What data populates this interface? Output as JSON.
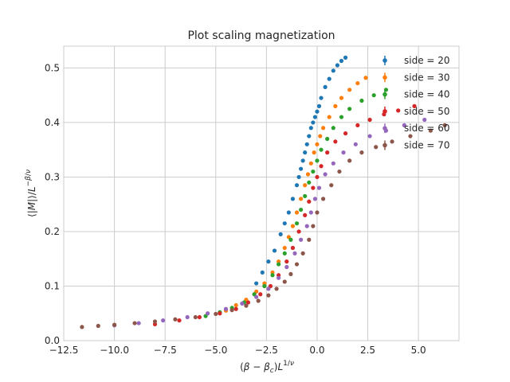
{
  "chart_data": {
    "type": "scatter",
    "title": "Plot scaling magnetization",
    "xlabel": "(β − β_c)L^{1/ν}",
    "ylabel": "⟨|M|⟩/L^{−β/ν}",
    "xlim": [
      -12.5,
      7.0
    ],
    "ylim": [
      0.0,
      0.54
    ],
    "x_ticks": [
      -12.5,
      -10.0,
      -7.5,
      -5.0,
      -2.5,
      0.0,
      2.5,
      5.0
    ],
    "y_ticks": [
      0.0,
      0.1,
      0.2,
      0.3,
      0.4,
      0.5
    ],
    "grid": true,
    "legend_position": "top-right",
    "colors": [
      "#1f77b4",
      "#ff7f0e",
      "#2ca02c",
      "#d62728",
      "#9467bd",
      "#8c564b"
    ],
    "series": [
      {
        "name": "side = 20",
        "x": [
          -3.0,
          -2.7,
          -2.4,
          -2.1,
          -1.8,
          -1.6,
          -1.4,
          -1.2,
          -1.0,
          -0.9,
          -0.8,
          -0.7,
          -0.6,
          -0.5,
          -0.4,
          -0.3,
          -0.2,
          -0.1,
          0.0,
          0.1,
          0.2,
          0.4,
          0.6,
          0.8,
          1.0,
          1.2,
          1.4
        ],
        "y": [
          0.105,
          0.125,
          0.145,
          0.165,
          0.195,
          0.215,
          0.235,
          0.26,
          0.285,
          0.3,
          0.315,
          0.33,
          0.345,
          0.36,
          0.375,
          0.39,
          0.4,
          0.41,
          0.42,
          0.43,
          0.445,
          0.465,
          0.48,
          0.495,
          0.505,
          0.513,
          0.519
        ]
      },
      {
        "name": "side = 30",
        "x": [
          -4.5,
          -4.0,
          -3.5,
          -3.0,
          -2.6,
          -2.2,
          -1.9,
          -1.6,
          -1.4,
          -1.2,
          -1.0,
          -0.8,
          -0.6,
          -0.45,
          -0.3,
          -0.15,
          0.0,
          0.15,
          0.3,
          0.6,
          0.9,
          1.2,
          1.6,
          2.0,
          2.4
        ],
        "y": [
          0.055,
          0.065,
          0.075,
          0.09,
          0.105,
          0.125,
          0.145,
          0.17,
          0.19,
          0.21,
          0.235,
          0.26,
          0.285,
          0.305,
          0.325,
          0.345,
          0.36,
          0.375,
          0.39,
          0.41,
          0.43,
          0.445,
          0.46,
          0.472,
          0.482
        ]
      },
      {
        "name": "side = 40",
        "x": [
          -5.5,
          -4.8,
          -4.2,
          -3.6,
          -3.1,
          -2.6,
          -2.2,
          -1.9,
          -1.6,
          -1.3,
          -1.0,
          -0.8,
          -0.6,
          -0.4,
          -0.2,
          0.0,
          0.2,
          0.5,
          0.8,
          1.2,
          1.6,
          2.2,
          2.8,
          3.4
        ],
        "y": [
          0.045,
          0.052,
          0.06,
          0.07,
          0.085,
          0.1,
          0.12,
          0.14,
          0.16,
          0.185,
          0.215,
          0.24,
          0.265,
          0.29,
          0.31,
          0.33,
          0.35,
          0.37,
          0.39,
          0.41,
          0.425,
          0.44,
          0.45,
          0.46
        ]
      },
      {
        "name": "side = 50",
        "x": [
          -8.0,
          -6.8,
          -5.8,
          -4.8,
          -4.0,
          -3.4,
          -2.8,
          -2.3,
          -1.9,
          -1.5,
          -1.2,
          -0.9,
          -0.6,
          -0.4,
          -0.2,
          0.0,
          0.2,
          0.5,
          0.9,
          1.4,
          2.0,
          2.6,
          3.3,
          4.0,
          4.8
        ],
        "y": [
          0.03,
          0.037,
          0.043,
          0.05,
          0.058,
          0.07,
          0.085,
          0.1,
          0.12,
          0.145,
          0.17,
          0.2,
          0.23,
          0.255,
          0.28,
          0.3,
          0.32,
          0.345,
          0.365,
          0.38,
          0.395,
          0.405,
          0.415,
          0.422,
          0.43
        ]
      },
      {
        "name": "side = 60",
        "x": [
          -10.0,
          -8.8,
          -7.6,
          -6.4,
          -5.4,
          -4.5,
          -3.7,
          -3.0,
          -2.4,
          -1.9,
          -1.5,
          -1.1,
          -0.8,
          -0.5,
          -0.3,
          -0.1,
          0.1,
          0.4,
          0.8,
          1.3,
          1.9,
          2.6,
          3.4,
          4.3,
          5.3
        ],
        "y": [
          0.028,
          0.032,
          0.037,
          0.043,
          0.05,
          0.058,
          0.068,
          0.08,
          0.095,
          0.115,
          0.135,
          0.16,
          0.185,
          0.21,
          0.235,
          0.26,
          0.28,
          0.305,
          0.325,
          0.345,
          0.36,
          0.375,
          0.385,
          0.395,
          0.405
        ]
      },
      {
        "name": "side = 70",
        "x": [
          -11.6,
          -10.8,
          -10.0,
          -9.0,
          -8.0,
          -7.0,
          -6.0,
          -5.0,
          -4.2,
          -3.5,
          -2.9,
          -2.4,
          -2.0,
          -1.6,
          -1.3,
          -1.0,
          -0.7,
          -0.4,
          -0.2,
          0.0,
          0.3,
          0.7,
          1.1,
          1.6,
          2.2,
          2.9,
          3.7,
          4.6,
          5.6,
          6.3
        ],
        "y": [
          0.025,
          0.027,
          0.029,
          0.032,
          0.035,
          0.039,
          0.043,
          0.049,
          0.056,
          0.064,
          0.073,
          0.083,
          0.095,
          0.108,
          0.122,
          0.14,
          0.16,
          0.185,
          0.21,
          0.235,
          0.26,
          0.285,
          0.31,
          0.33,
          0.345,
          0.355,
          0.365,
          0.375,
          0.385,
          0.395
        ]
      }
    ]
  }
}
